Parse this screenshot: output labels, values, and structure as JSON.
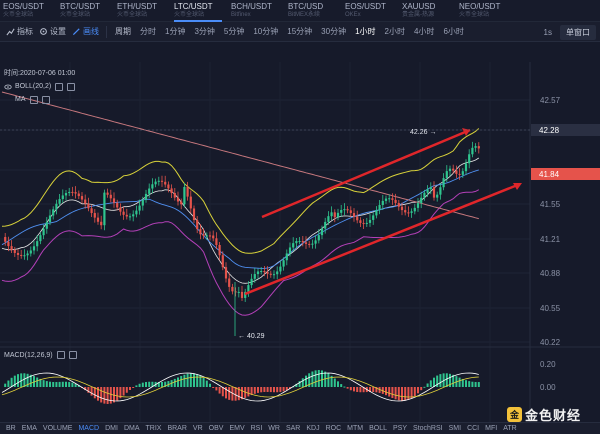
{
  "market_tabs": [
    {
      "symbol": "EOS/USDT",
      "exchange": "火币全球站"
    },
    {
      "symbol": "BTC/USDT",
      "exchange": "火币全球站"
    },
    {
      "symbol": "ETH/USDT",
      "exchange": "火币全球站"
    },
    {
      "symbol": "LTC/USDT",
      "exchange": "火币全球站"
    },
    {
      "symbol": "BCH/USDT",
      "exchange": "Bitfinex"
    },
    {
      "symbol": "BTC/USD",
      "exchange": "BitMEX永续"
    },
    {
      "symbol": "EOS/USDT",
      "exchange": "OKEx"
    },
    {
      "symbol": "XAUUSD",
      "exchange": "贵金属-热源"
    },
    {
      "symbol": "NEO/USDT",
      "exchange": "火币全球站"
    }
  ],
  "active_tab": 3,
  "toolbar": {
    "indicator": "指标",
    "settings": "设置",
    "draw": "画线",
    "period_label": "周期",
    "periods": [
      "分时",
      "1分钟",
      "3分钟",
      "5分钟",
      "10分钟",
      "15分钟",
      "30分钟",
      "1小时",
      "2小时",
      "4小时",
      "6小时"
    ],
    "active_period": "1小时",
    "one_s": "1s",
    "single_window": "单窗口"
  },
  "chart": {
    "time": "时间:2020-07-06 01:00",
    "boll": "BOLL(20,2)",
    "ma": "MA",
    "price_high_label": "42.26",
    "price_low_label": "40.29",
    "crosshair_price": "42.28",
    "last_price": "41.84",
    "y_ticks": [
      "42.57",
      "42.28",
      "41.90",
      "41.55",
      "41.21",
      "40.88",
      "40.55",
      "40.22"
    ],
    "macd": "MACD(12,26,9)",
    "macd_ticks": [
      "0.20",
      "0.00"
    ]
  },
  "indicators": [
    "BR",
    "EMA",
    "VOLUME",
    "MACD",
    "DMI",
    "DMA",
    "TRIX",
    "BRAR",
    "VR",
    "OBV",
    "EMV",
    "RSI",
    "WR",
    "SAR",
    "KDJ",
    "ROC",
    "MTM",
    "BOLL",
    "PSY",
    "StochRSI",
    "SMI",
    "CCI",
    "MFI",
    "ATR"
  ],
  "active_indicator": "MACD",
  "logo": {
    "mark": "金",
    "text": "金色财经"
  },
  "colors": {
    "up": "#2fc58f",
    "down": "#e5534b",
    "accent": "#4a8cf7",
    "trend_line": "#e0262a"
  }
}
